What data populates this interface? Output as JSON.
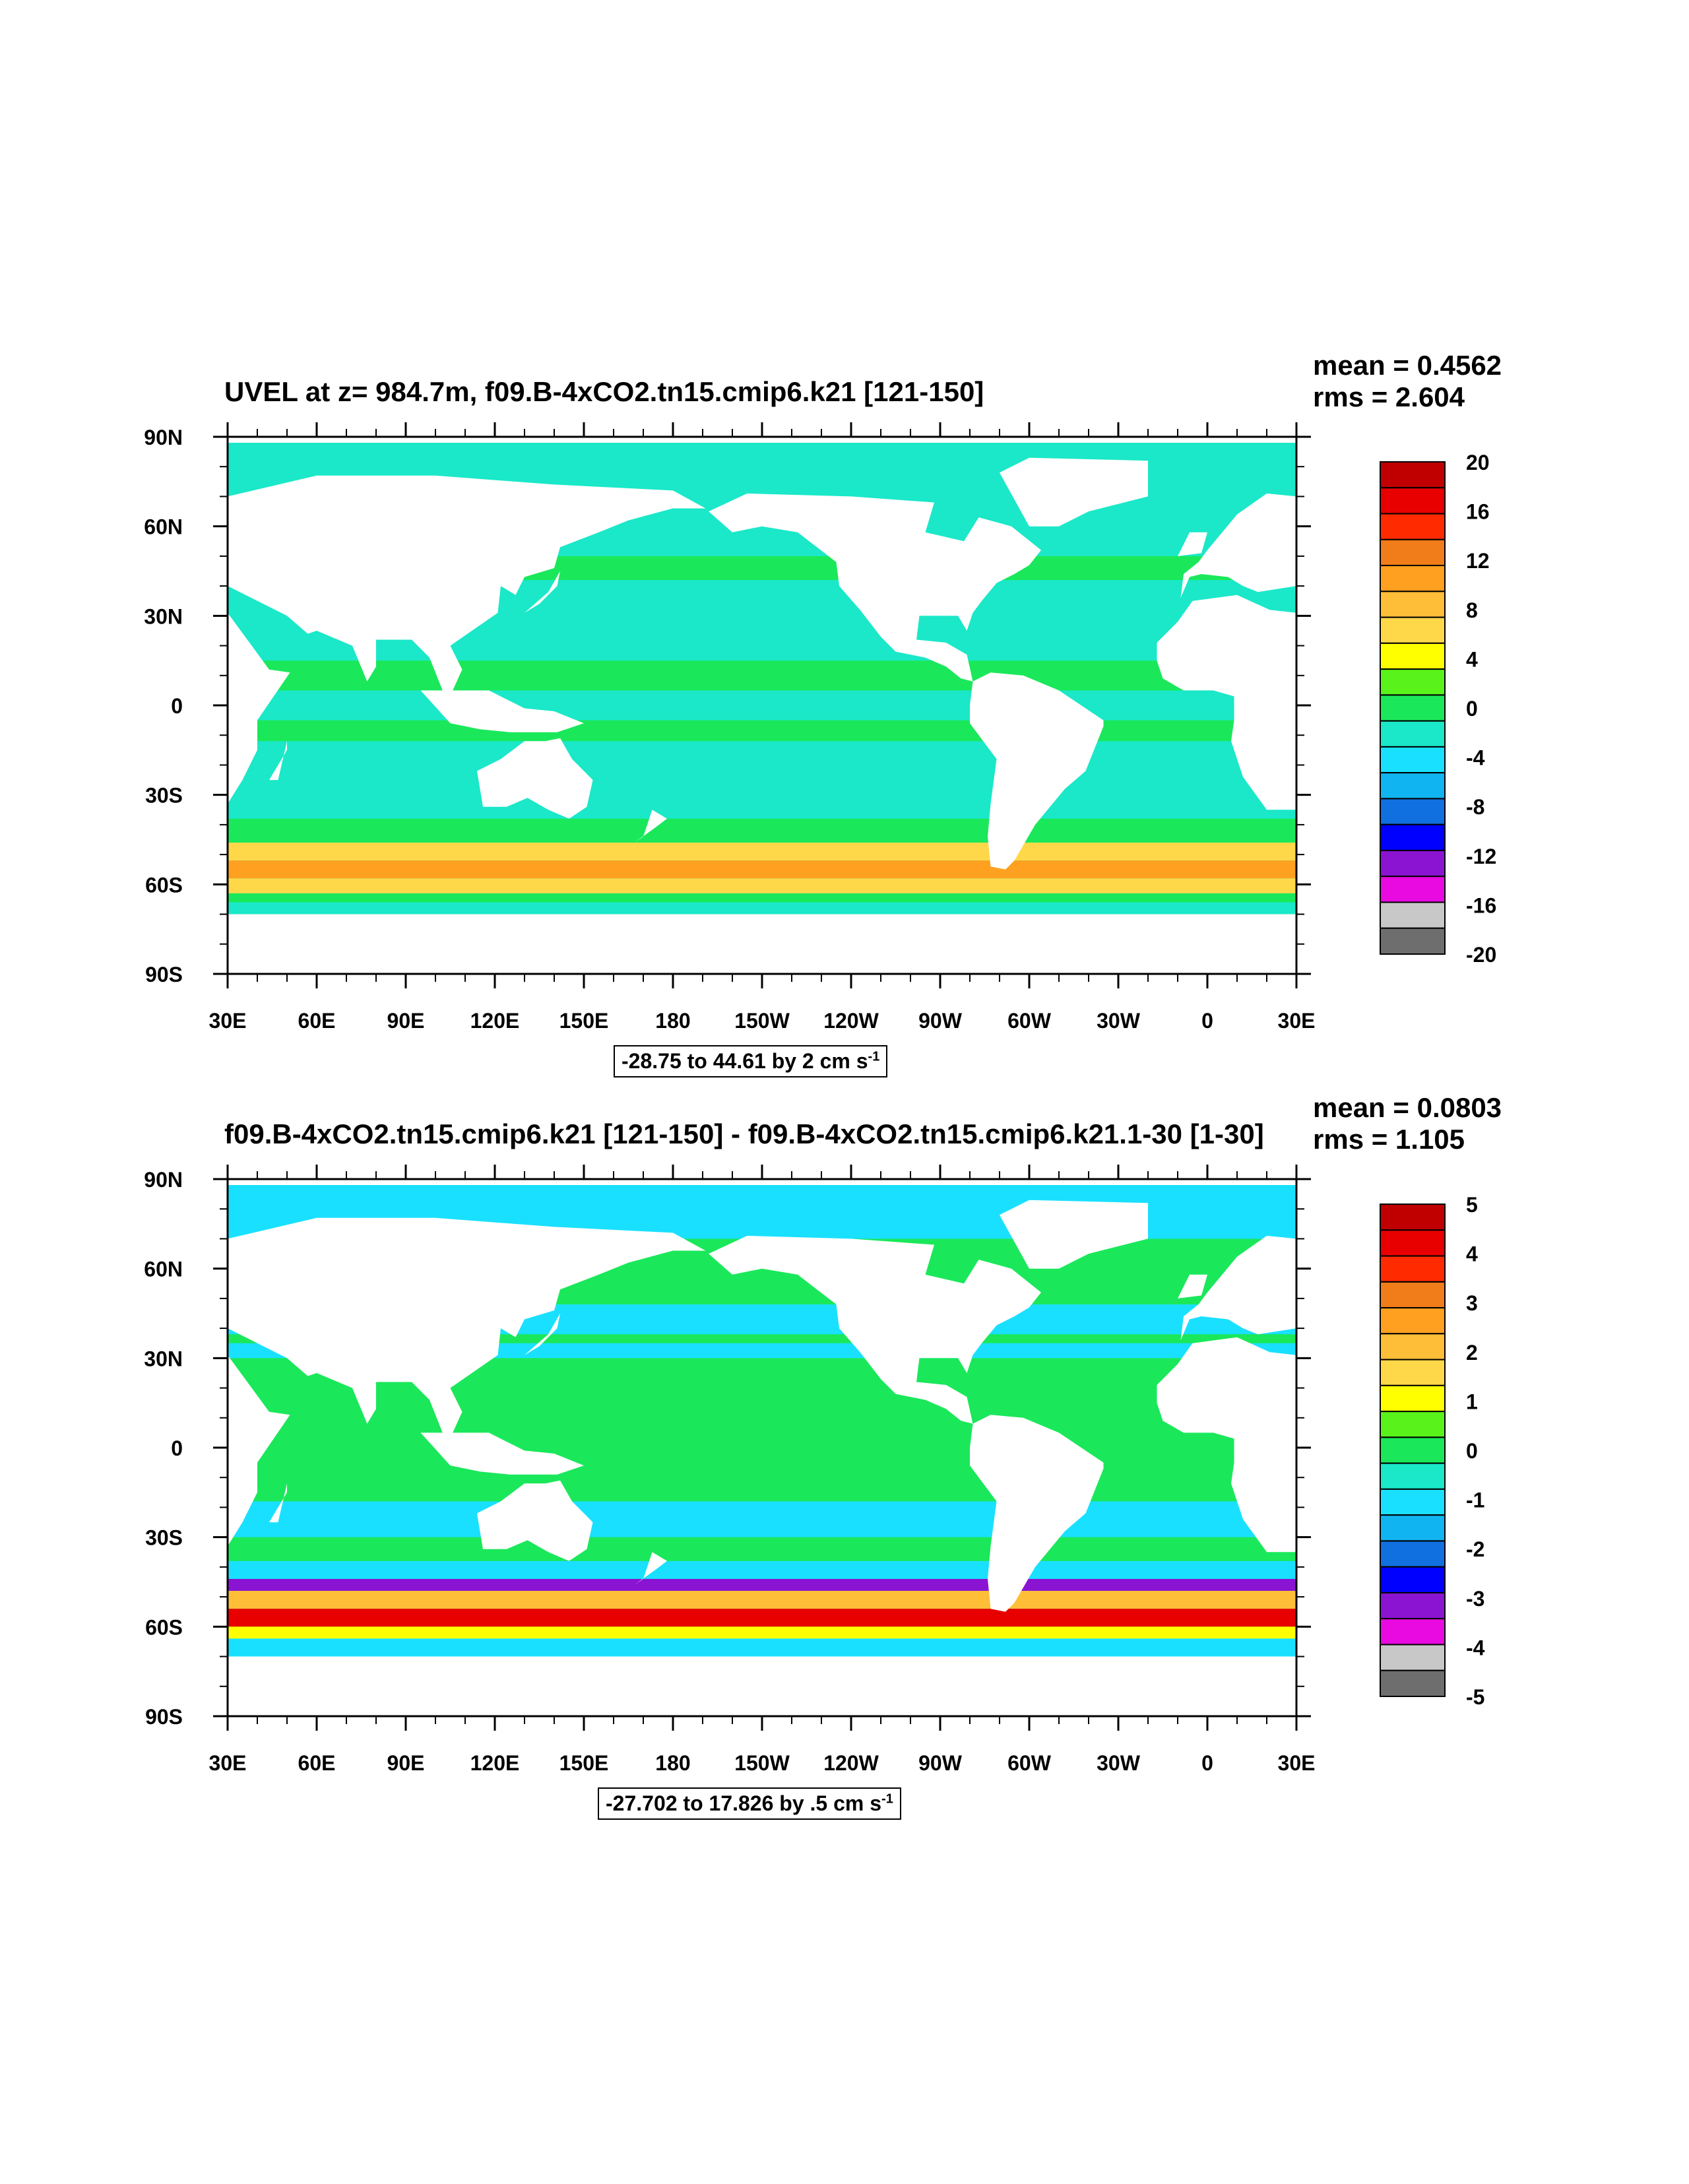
{
  "chart_data": [
    {
      "type": "heatmap",
      "title": "UVEL at z= 984.7m, f09.B-4xCO2.tn15.cmip6.k21 [121-150]",
      "stats": {
        "mean": "mean = 0.4562",
        "rms": "rms = 2.604"
      },
      "range_prefix": "-28.75 to 44.61 by 2 cm s",
      "range_exp": "-1",
      "xticks": [
        "30E",
        "60E",
        "90E",
        "120E",
        "150E",
        "180",
        "150W",
        "120W",
        "90W",
        "60W",
        "30W",
        "0",
        "30E"
      ],
      "yticks": [
        "90N",
        "60N",
        "30N",
        "0",
        "30S",
        "60S",
        "90S"
      ],
      "xlim_deg": [
        30,
        390
      ],
      "ylim_deg": [
        -90,
        90
      ],
      "colorbar_labels": [
        "20",
        "16",
        "12",
        "8",
        "4",
        "0",
        "-4",
        "-8",
        "-12",
        "-16",
        "-20"
      ],
      "colorbar_colors": [
        "#c00000",
        "#e80000",
        "#ff2a00",
        "#f07c1a",
        "#ffa020",
        "#ffbe38",
        "#ffd84a",
        "#ffff00",
        "#59f21a",
        "#1ae85a",
        "#1ae8c8",
        "#1ae0ff",
        "#10b4f0",
        "#1070e0",
        "#0000ff",
        "#8a14d2",
        "#e80ae0",
        "#c8c8c8",
        "#6e6e6e"
      ],
      "colorbar_bounds": [
        -20,
        20
      ],
      "field_summary": {
        "background": "#1ae8c8",
        "bands": [
          {
            "lat_from": -38,
            "lat_to": -46,
            "value": 0
          },
          {
            "lat_from": -46,
            "lat_to": -52,
            "value": 6
          },
          {
            "lat_from": -52,
            "lat_to": -58,
            "value": 10
          },
          {
            "lat_from": -58,
            "lat_to": -63,
            "value": 6
          },
          {
            "lat_from": -63,
            "lat_to": -66,
            "value": 0
          },
          {
            "lat_from": 15,
            "lat_to": 5,
            "value": 0
          },
          {
            "lat_from": -5,
            "lat_to": -12,
            "value": 0
          },
          {
            "lat_from": 50,
            "lat_to": 42,
            "value": 0
          }
        ]
      }
    },
    {
      "type": "heatmap",
      "title": "f09.B-4xCO2.tn15.cmip6.k21 [121-150] - f09.B-4xCO2.tn15.cmip6.k21.1-30 [1-30]",
      "stats": {
        "mean": "mean = 0.0803",
        "rms": "rms = 1.105"
      },
      "range_prefix": "-27.702 to 17.826 by .5 cm s",
      "range_exp": "-1",
      "xticks": [
        "30E",
        "60E",
        "90E",
        "120E",
        "150E",
        "180",
        "150W",
        "120W",
        "90W",
        "60W",
        "30W",
        "0",
        "30E"
      ],
      "yticks": [
        "90N",
        "60N",
        "30N",
        "0",
        "30S",
        "60S",
        "90S"
      ],
      "xlim_deg": [
        30,
        390
      ],
      "ylim_deg": [
        -90,
        90
      ],
      "colorbar_labels": [
        "5",
        "4",
        "3",
        "2",
        "1",
        "0",
        "-1",
        "-2",
        "-3",
        "-4",
        "-5"
      ],
      "colorbar_colors": [
        "#c00000",
        "#e80000",
        "#ff2a00",
        "#f07c1a",
        "#ffa020",
        "#ffbe38",
        "#ffd84a",
        "#ffff00",
        "#59f21a",
        "#1ae85a",
        "#1ae8c8",
        "#1ae0ff",
        "#10b4f0",
        "#1070e0",
        "#0000ff",
        "#8a14d2",
        "#e80ae0",
        "#c8c8c8",
        "#6e6e6e"
      ],
      "colorbar_bounds": [
        -5,
        5
      ],
      "field_summary": {
        "background": "#1ae85a",
        "bands": [
          {
            "lat_from": 88,
            "lat_to": 70,
            "value": -1
          },
          {
            "lat_from": 48,
            "lat_to": 38,
            "value": -1
          },
          {
            "lat_from": 35,
            "lat_to": 30,
            "value": -1
          },
          {
            "lat_from": -18,
            "lat_to": -30,
            "value": -1
          },
          {
            "lat_from": -38,
            "lat_to": -44,
            "value": -1
          },
          {
            "lat_from": -44,
            "lat_to": -48,
            "value": -3
          },
          {
            "lat_from": -48,
            "lat_to": -54,
            "value": 2
          },
          {
            "lat_from": -54,
            "lat_to": -60,
            "value": 4
          },
          {
            "lat_from": -60,
            "lat_to": -64,
            "value": 1
          },
          {
            "lat_from": -64,
            "lat_to": -70,
            "value": -1
          }
        ]
      }
    }
  ]
}
